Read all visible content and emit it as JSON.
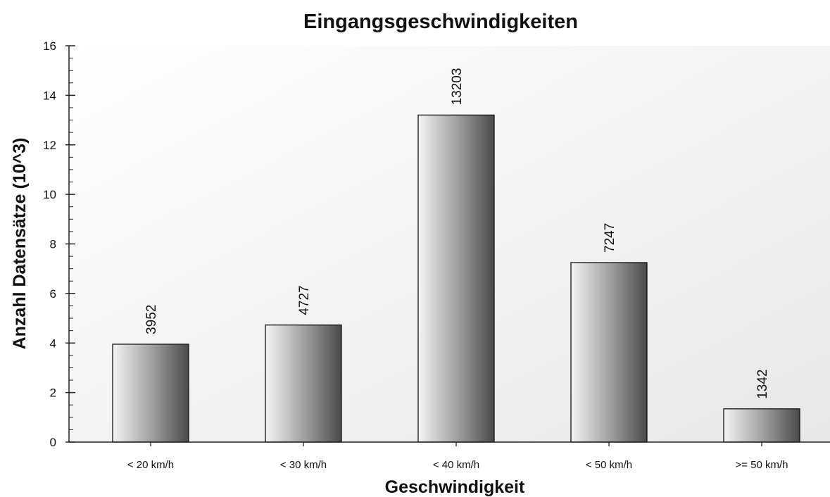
{
  "chart_data": {
    "type": "bar",
    "title": "Eingangsgeschwindigkeiten",
    "xlabel": "Geschwindigkeit",
    "ylabel": "Anzahl Datensätze (10^3)",
    "categories": [
      "< 20 km/h",
      "< 30 km/h",
      "< 40 km/h",
      "< 50 km/h",
      ">= 50 km/h"
    ],
    "values": [
      3.952,
      4.727,
      13.203,
      7.247,
      1.342
    ],
    "data_labels": [
      "3952",
      "4727",
      "13203",
      "7247",
      "1342"
    ],
    "ylim": [
      0,
      16
    ],
    "yticks": [
      0,
      2,
      4,
      6,
      8,
      10,
      12,
      14,
      16
    ],
    "ytick_labels": [
      "0",
      "2",
      "4",
      "6",
      "8",
      "10",
      "12",
      "14",
      "16"
    ],
    "grid": false,
    "legend": "none"
  }
}
